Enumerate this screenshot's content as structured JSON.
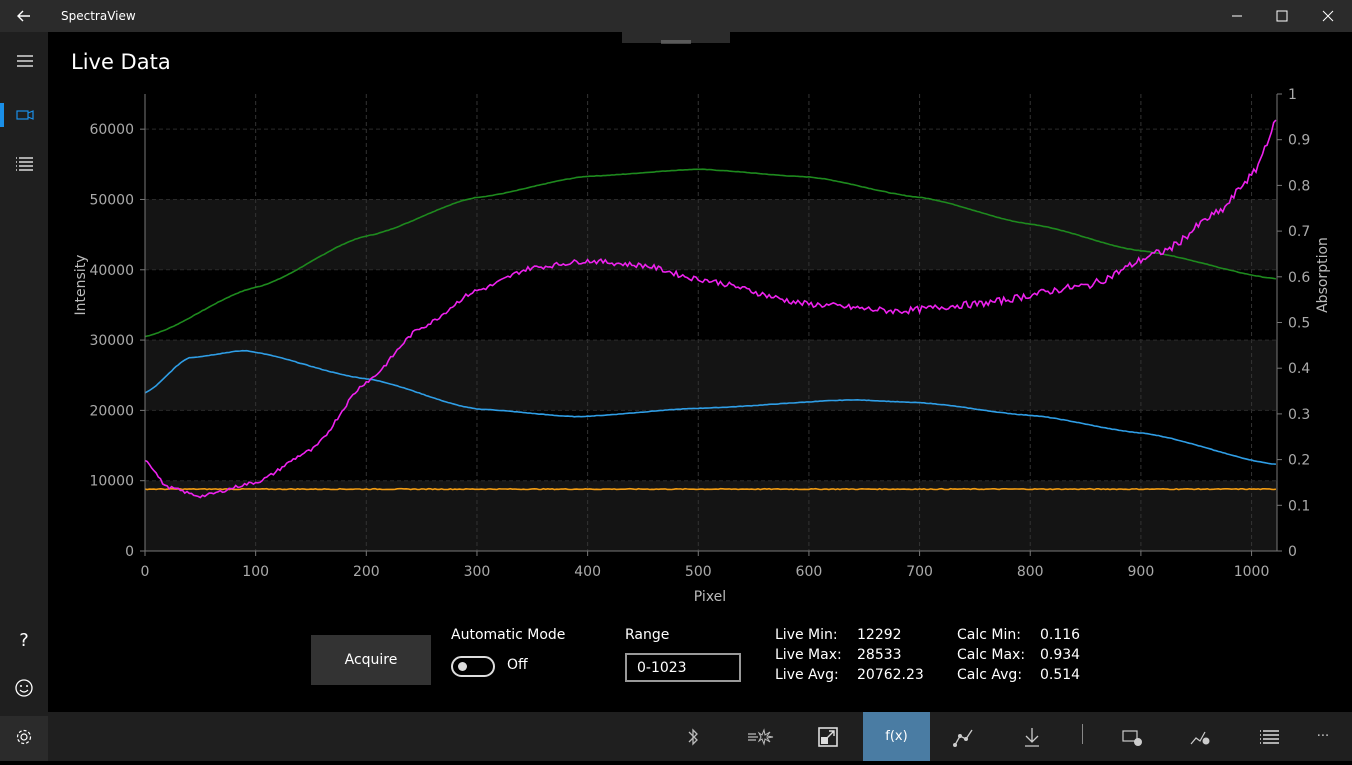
{
  "app": {
    "title": "SpectraView"
  },
  "page": {
    "title": "Live Data"
  },
  "sidebar": {
    "items": [
      {
        "icon": "hamburger-menu-icon"
      },
      {
        "icon": "video-camera-icon",
        "active": true
      },
      {
        "icon": "list-icon"
      },
      {
        "icon": "help-icon",
        "label": "?"
      },
      {
        "icon": "smiley-feedback-icon"
      },
      {
        "icon": "gear-icon"
      }
    ]
  },
  "controls": {
    "acquire_label": "Acquire",
    "auto_mode_label": "Automatic Mode",
    "auto_mode_state": "Off",
    "range_label": "Range",
    "range_value": "0-1023"
  },
  "stats": {
    "live_min_label": "Live Min:",
    "live_min": "12292",
    "live_max_label": "Live Max:",
    "live_max": "28533",
    "live_avg_label": "Live Avg:",
    "live_avg": "20762.23",
    "calc_min_label": "Calc Min:",
    "calc_min": "0.116",
    "calc_max_label": "Calc Max:",
    "calc_max": "0.934",
    "calc_avg_label": "Calc Avg:",
    "calc_avg": "0.514"
  },
  "bottombar": {
    "buttons": [
      {
        "icon": "bluetooth-icon"
      },
      {
        "icon": "light-source-icon"
      },
      {
        "icon": "scale-icon"
      },
      {
        "icon": "function-icon",
        "label": "f(x)",
        "active": true
      },
      {
        "icon": "peak-icon"
      },
      {
        "icon": "download-icon"
      },
      {
        "icon": "device-settings-icon"
      },
      {
        "icon": "graph-settings-icon"
      },
      {
        "icon": "list-view-icon"
      },
      {
        "icon": "more-icon",
        "label": "···"
      }
    ]
  },
  "chart_data": {
    "type": "line",
    "xlabel": "Pixel",
    "ylabel": "Intensity",
    "y2label": "Absorption",
    "xlim": [
      0,
      1023
    ],
    "ylim": [
      0,
      65000
    ],
    "y2lim": [
      0,
      1
    ],
    "xticks": [
      0,
      100,
      200,
      300,
      400,
      500,
      600,
      700,
      800,
      900,
      1000
    ],
    "yticks": [
      0,
      10000,
      20000,
      30000,
      40000,
      50000,
      60000
    ],
    "y2ticks": [
      0,
      0.1,
      0.2,
      0.3,
      0.4,
      0.5,
      0.6,
      0.7,
      0.8,
      0.9,
      1
    ],
    "y2ticklabels": [
      "0",
      "0.1",
      "0.2",
      "0.3",
      "0.4",
      "0.5",
      "0.6",
      "0.7",
      "0.8",
      "0.9",
      "1"
    ],
    "grid": true,
    "series": [
      {
        "color": "#1e8a1e",
        "axis": "left",
        "x": [
          0,
          100,
          200,
          300,
          400,
          500,
          600,
          700,
          800,
          900,
          1023
        ],
        "y": [
          30500,
          37500,
          44800,
          50300,
          53300,
          54300,
          53200,
          50300,
          46500,
          42700,
          38700
        ]
      },
      {
        "color": "#2f9ee6",
        "axis": "left",
        "x": [
          0,
          40,
          90,
          200,
          300,
          390,
          500,
          640,
          700,
          800,
          900,
          1023
        ],
        "y": [
          22500,
          27500,
          28500,
          24500,
          20200,
          19100,
          20300,
          21500,
          21100,
          19300,
          16800,
          12300
        ]
      },
      {
        "color": "#f39c12",
        "axis": "left",
        "x": [
          0,
          1023
        ],
        "y": [
          8800,
          8800
        ]
      },
      {
        "color": "#ee22ee",
        "axis": "right",
        "x": [
          0,
          20,
          50,
          100,
          150,
          200,
          250,
          300,
          350,
          400,
          450,
          500,
          600,
          680,
          750,
          850,
          920,
          970,
          1000,
          1023
        ],
        "y": [
          0.2,
          0.14,
          0.12,
          0.15,
          0.22,
          0.37,
          0.49,
          0.57,
          0.62,
          0.635,
          0.625,
          0.595,
          0.54,
          0.525,
          0.54,
          0.58,
          0.655,
          0.74,
          0.82,
          0.94
        ]
      }
    ]
  }
}
